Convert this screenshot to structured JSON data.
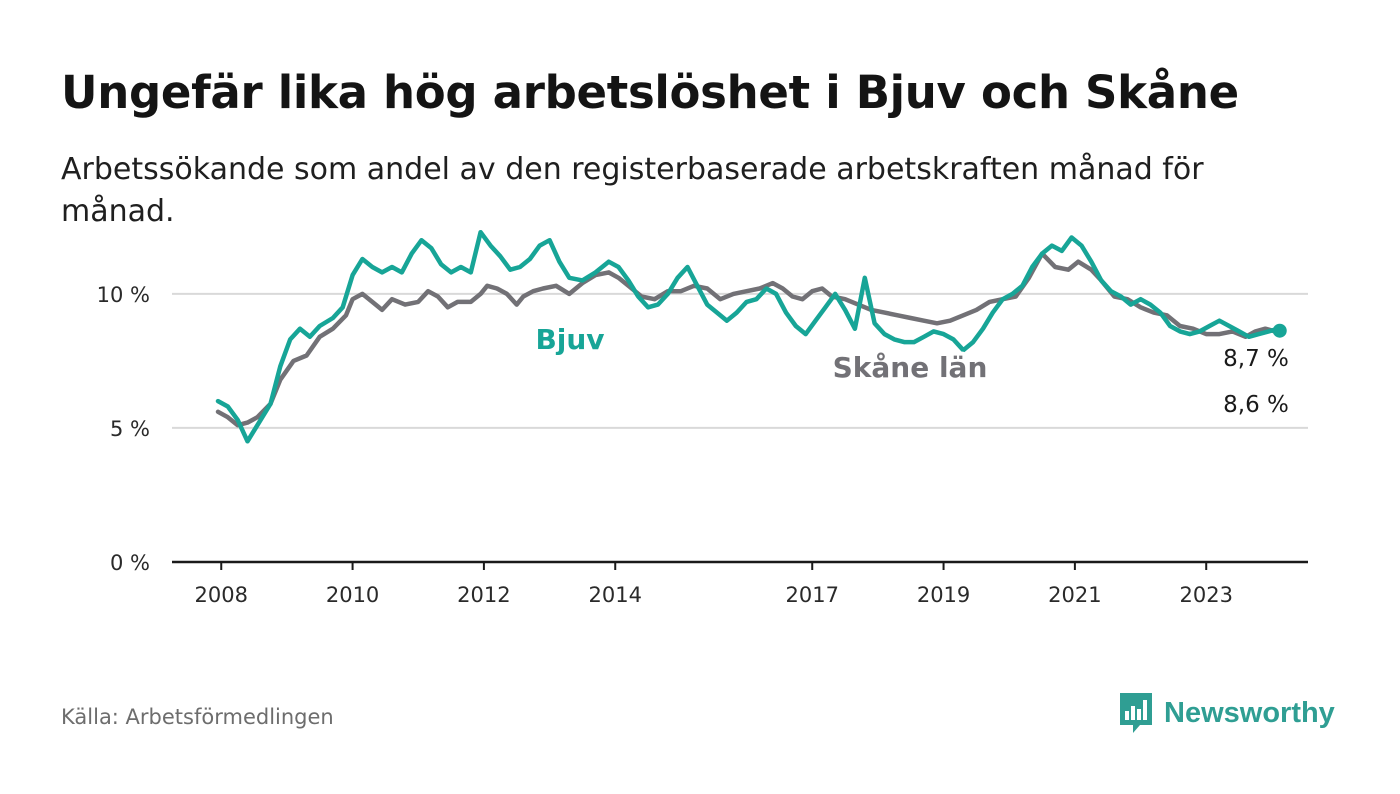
{
  "title": "Ungefär lika hög arbetslöshet i Bjuv och Skåne",
  "subtitle": "Arbetssökande som andel av den registerbaserade arbetskraften månad för månad.",
  "source": "Källa: Arbetsförmedlingen",
  "brand": {
    "name": "Newsworthy",
    "icon": "newsworthy-logo-icon"
  },
  "colors": {
    "bjuv": "#17a597",
    "skane": "#727176",
    "axis": "#1a1a1a",
    "grid": "#d9d9d9"
  },
  "chart_data": {
    "type": "line",
    "ylim": [
      0,
      13.5
    ],
    "xlim": [
      2007.25,
      2024.55
    ],
    "y_ticks": [
      {
        "value": 0,
        "label": "0 %"
      },
      {
        "value": 5,
        "label": "5 %"
      },
      {
        "value": 10,
        "label": "10 %"
      }
    ],
    "x_ticks": [
      {
        "value": 2008,
        "label": "2008"
      },
      {
        "value": 2010,
        "label": "2010"
      },
      {
        "value": 2012,
        "label": "2012"
      },
      {
        "value": 2014,
        "label": "2014"
      },
      {
        "value": 2017,
        "label": "2017"
      },
      {
        "value": 2019,
        "label": "2019"
      },
      {
        "value": 2021,
        "label": "2021"
      },
      {
        "value": 2023,
        "label": "2023"
      }
    ],
    "series": [
      {
        "name": "Skåne län",
        "label": "Skåne län",
        "end_label": "8,6 %",
        "points": [
          [
            2007.95,
            5.6
          ],
          [
            2008.1,
            5.4
          ],
          [
            2008.25,
            5.1
          ],
          [
            2008.4,
            5.2
          ],
          [
            2008.55,
            5.4
          ],
          [
            2008.75,
            5.9
          ],
          [
            2008.9,
            6.8
          ],
          [
            2009.1,
            7.5
          ],
          [
            2009.3,
            7.7
          ],
          [
            2009.5,
            8.4
          ],
          [
            2009.7,
            8.7
          ],
          [
            2009.9,
            9.2
          ],
          [
            2010.0,
            9.8
          ],
          [
            2010.15,
            10.0
          ],
          [
            2010.3,
            9.7
          ],
          [
            2010.45,
            9.4
          ],
          [
            2010.6,
            9.8
          ],
          [
            2010.8,
            9.6
          ],
          [
            2011.0,
            9.7
          ],
          [
            2011.15,
            10.1
          ],
          [
            2011.3,
            9.9
          ],
          [
            2011.45,
            9.5
          ],
          [
            2011.6,
            9.7
          ],
          [
            2011.8,
            9.7
          ],
          [
            2011.95,
            10.0
          ],
          [
            2012.05,
            10.3
          ],
          [
            2012.2,
            10.2
          ],
          [
            2012.35,
            10.0
          ],
          [
            2012.5,
            9.6
          ],
          [
            2012.6,
            9.9
          ],
          [
            2012.75,
            10.1
          ],
          [
            2012.9,
            10.2
          ],
          [
            2013.1,
            10.3
          ],
          [
            2013.3,
            10.0
          ],
          [
            2013.5,
            10.4
          ],
          [
            2013.7,
            10.7
          ],
          [
            2013.9,
            10.8
          ],
          [
            2014.05,
            10.6
          ],
          [
            2014.2,
            10.3
          ],
          [
            2014.4,
            9.9
          ],
          [
            2014.6,
            9.8
          ],
          [
            2014.8,
            10.1
          ],
          [
            2015.0,
            10.1
          ],
          [
            2015.2,
            10.3
          ],
          [
            2015.4,
            10.2
          ],
          [
            2015.6,
            9.8
          ],
          [
            2015.8,
            10.0
          ],
          [
            2016.0,
            10.1
          ],
          [
            2016.2,
            10.2
          ],
          [
            2016.4,
            10.4
          ],
          [
            2016.55,
            10.2
          ],
          [
            2016.7,
            9.9
          ],
          [
            2016.85,
            9.8
          ],
          [
            2017.0,
            10.1
          ],
          [
            2017.15,
            10.2
          ],
          [
            2017.3,
            9.9
          ],
          [
            2017.5,
            9.8
          ],
          [
            2017.7,
            9.6
          ],
          [
            2017.9,
            9.4
          ],
          [
            2018.1,
            9.3
          ],
          [
            2018.3,
            9.2
          ],
          [
            2018.5,
            9.1
          ],
          [
            2018.7,
            9.0
          ],
          [
            2018.9,
            8.9
          ],
          [
            2019.1,
            9.0
          ],
          [
            2019.3,
            9.2
          ],
          [
            2019.5,
            9.4
          ],
          [
            2019.7,
            9.7
          ],
          [
            2019.9,
            9.8
          ],
          [
            2020.1,
            9.9
          ],
          [
            2020.3,
            10.6
          ],
          [
            2020.5,
            11.5
          ],
          [
            2020.7,
            11.0
          ],
          [
            2020.9,
            10.9
          ],
          [
            2021.05,
            11.2
          ],
          [
            2021.25,
            10.9
          ],
          [
            2021.4,
            10.5
          ],
          [
            2021.6,
            9.9
          ],
          [
            2021.8,
            9.8
          ],
          [
            2022.0,
            9.5
          ],
          [
            2022.2,
            9.3
          ],
          [
            2022.4,
            9.2
          ],
          [
            2022.6,
            8.8
          ],
          [
            2022.8,
            8.7
          ],
          [
            2023.0,
            8.5
          ],
          [
            2023.2,
            8.5
          ],
          [
            2023.4,
            8.6
          ],
          [
            2023.6,
            8.4
          ],
          [
            2023.75,
            8.6
          ],
          [
            2023.9,
            8.7
          ],
          [
            2024.05,
            8.6
          ],
          [
            2024.15,
            8.6
          ]
        ]
      },
      {
        "name": "Bjuv",
        "label": "Bjuv",
        "end_label": "8,7 %",
        "points": [
          [
            2007.95,
            6.0
          ],
          [
            2008.1,
            5.8
          ],
          [
            2008.25,
            5.3
          ],
          [
            2008.4,
            4.5
          ],
          [
            2008.55,
            5.1
          ],
          [
            2008.75,
            5.9
          ],
          [
            2008.9,
            7.3
          ],
          [
            2009.05,
            8.3
          ],
          [
            2009.2,
            8.7
          ],
          [
            2009.35,
            8.4
          ],
          [
            2009.5,
            8.8
          ],
          [
            2009.7,
            9.1
          ],
          [
            2009.85,
            9.5
          ],
          [
            2010.0,
            10.7
          ],
          [
            2010.15,
            11.3
          ],
          [
            2010.3,
            11.0
          ],
          [
            2010.45,
            10.8
          ],
          [
            2010.6,
            11.0
          ],
          [
            2010.75,
            10.8
          ],
          [
            2010.9,
            11.5
          ],
          [
            2011.05,
            12.0
          ],
          [
            2011.2,
            11.7
          ],
          [
            2011.35,
            11.1
          ],
          [
            2011.5,
            10.8
          ],
          [
            2011.65,
            11.0
          ],
          [
            2011.8,
            10.8
          ],
          [
            2011.95,
            12.3
          ],
          [
            2012.1,
            11.8
          ],
          [
            2012.25,
            11.4
          ],
          [
            2012.4,
            10.9
          ],
          [
            2012.55,
            11.0
          ],
          [
            2012.7,
            11.3
          ],
          [
            2012.85,
            11.8
          ],
          [
            2013.0,
            12.0
          ],
          [
            2013.15,
            11.2
          ],
          [
            2013.3,
            10.6
          ],
          [
            2013.5,
            10.5
          ],
          [
            2013.7,
            10.8
          ],
          [
            2013.9,
            11.2
          ],
          [
            2014.05,
            11.0
          ],
          [
            2014.2,
            10.5
          ],
          [
            2014.35,
            9.9
          ],
          [
            2014.5,
            9.5
          ],
          [
            2014.65,
            9.6
          ],
          [
            2014.8,
            10.0
          ],
          [
            2014.95,
            10.6
          ],
          [
            2015.1,
            11.0
          ],
          [
            2015.25,
            10.3
          ],
          [
            2015.4,
            9.6
          ],
          [
            2015.55,
            9.3
          ],
          [
            2015.7,
            9.0
          ],
          [
            2015.85,
            9.3
          ],
          [
            2016.0,
            9.7
          ],
          [
            2016.15,
            9.8
          ],
          [
            2016.3,
            10.2
          ],
          [
            2016.45,
            10.0
          ],
          [
            2016.6,
            9.3
          ],
          [
            2016.75,
            8.8
          ],
          [
            2016.9,
            8.5
          ],
          [
            2017.05,
            9.0
          ],
          [
            2017.2,
            9.5
          ],
          [
            2017.35,
            10.0
          ],
          [
            2017.5,
            9.4
          ],
          [
            2017.65,
            8.7
          ],
          [
            2017.8,
            10.6
          ],
          [
            2017.95,
            8.9
          ],
          [
            2018.1,
            8.5
          ],
          [
            2018.25,
            8.3
          ],
          [
            2018.4,
            8.2
          ],
          [
            2018.55,
            8.2
          ],
          [
            2018.7,
            8.4
          ],
          [
            2018.85,
            8.6
          ],
          [
            2019.0,
            8.5
          ],
          [
            2019.15,
            8.3
          ],
          [
            2019.3,
            7.9
          ],
          [
            2019.45,
            8.2
          ],
          [
            2019.6,
            8.7
          ],
          [
            2019.75,
            9.3
          ],
          [
            2019.9,
            9.8
          ],
          [
            2020.05,
            10.0
          ],
          [
            2020.2,
            10.3
          ],
          [
            2020.35,
            11.0
          ],
          [
            2020.5,
            11.5
          ],
          [
            2020.65,
            11.8
          ],
          [
            2020.8,
            11.6
          ],
          [
            2020.95,
            12.1
          ],
          [
            2021.1,
            11.8
          ],
          [
            2021.25,
            11.2
          ],
          [
            2021.4,
            10.5
          ],
          [
            2021.55,
            10.1
          ],
          [
            2021.7,
            9.9
          ],
          [
            2021.85,
            9.6
          ],
          [
            2022.0,
            9.8
          ],
          [
            2022.15,
            9.6
          ],
          [
            2022.3,
            9.3
          ],
          [
            2022.45,
            8.8
          ],
          [
            2022.6,
            8.6
          ],
          [
            2022.75,
            8.5
          ],
          [
            2022.9,
            8.6
          ],
          [
            2023.05,
            8.8
          ],
          [
            2023.2,
            9.0
          ],
          [
            2023.35,
            8.8
          ],
          [
            2023.5,
            8.6
          ],
          [
            2023.65,
            8.4
          ],
          [
            2023.8,
            8.5
          ],
          [
            2023.95,
            8.6
          ],
          [
            2024.1,
            8.7
          ],
          [
            2024.15,
            8.7
          ]
        ]
      }
    ]
  }
}
